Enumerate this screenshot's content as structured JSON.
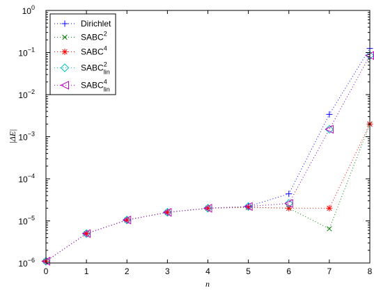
{
  "chart_data": {
    "type": "line",
    "xlabel": "n",
    "ylabel": "|ΔE|",
    "xlim": [
      0,
      8
    ],
    "ylim": [
      1e-06,
      1
    ],
    "yscale": "log",
    "grid": false,
    "legend_position": "top-left",
    "x_ticks": [
      "0",
      "1",
      "2",
      "3",
      "4",
      "5",
      "6",
      "7",
      "8"
    ],
    "y_ticks": [
      {
        "value": 1e-06,
        "base": "10",
        "exp": "−6"
      },
      {
        "value": 1e-05,
        "base": "10",
        "exp": "−5"
      },
      {
        "value": 0.0001,
        "base": "10",
        "exp": "−4"
      },
      {
        "value": 0.001,
        "base": "10",
        "exp": "−3"
      },
      {
        "value": 0.01,
        "base": "10",
        "exp": "−2"
      },
      {
        "value": 0.1,
        "base": "10",
        "exp": "−1"
      },
      {
        "value": 1,
        "base": "10",
        "exp": "0"
      }
    ],
    "x": [
      0,
      1,
      2,
      3,
      4,
      5,
      6,
      7,
      8
    ],
    "series": [
      {
        "name": "Dirichlet",
        "label_main": "Dirichlet",
        "label_sup": "",
        "label_sub": "",
        "marker": "plus",
        "color": "#0000ff",
        "values": [
          1.1e-06,
          5e-06,
          1.05e-05,
          1.6e-05,
          2e-05,
          2.2e-05,
          4.4e-05,
          0.0034,
          0.125
        ]
      },
      {
        "name": "SABC2",
        "label_main": "SABC",
        "label_sup": "2",
        "label_sub": "",
        "marker": "x",
        "color": "#008000",
        "values": [
          1.1e-06,
          5e-06,
          1.05e-05,
          1.6e-05,
          2e-05,
          2.1e-05,
          2e-05,
          6.5e-06,
          0.002
        ]
      },
      {
        "name": "SABC4",
        "label_main": "SABC",
        "label_sup": "4",
        "label_sub": "",
        "marker": "star",
        "color": "#ff0000",
        "values": [
          1.1e-06,
          5e-06,
          1.05e-05,
          1.6e-05,
          2e-05,
          2.1e-05,
          2e-05,
          2e-05,
          0.002
        ]
      },
      {
        "name": "SABC2lin",
        "label_main": "SABC",
        "label_sup": "2",
        "label_sub": "lin",
        "marker": "diamond",
        "color": "#00bfbf",
        "values": [
          1.1e-06,
          5e-06,
          1.05e-05,
          1.6e-05,
          2e-05,
          2.2e-05,
          2.6e-05,
          0.0015,
          0.085
        ]
      },
      {
        "name": "SABC4lin",
        "label_main": "SABC",
        "label_sup": "4",
        "label_sub": "lin",
        "marker": "triangle-left",
        "color": "#bf00bf",
        "values": [
          1.1e-06,
          5e-06,
          1.05e-05,
          1.6e-05,
          2e-05,
          2.2e-05,
          2.6e-05,
          0.0015,
          0.085
        ]
      }
    ]
  }
}
